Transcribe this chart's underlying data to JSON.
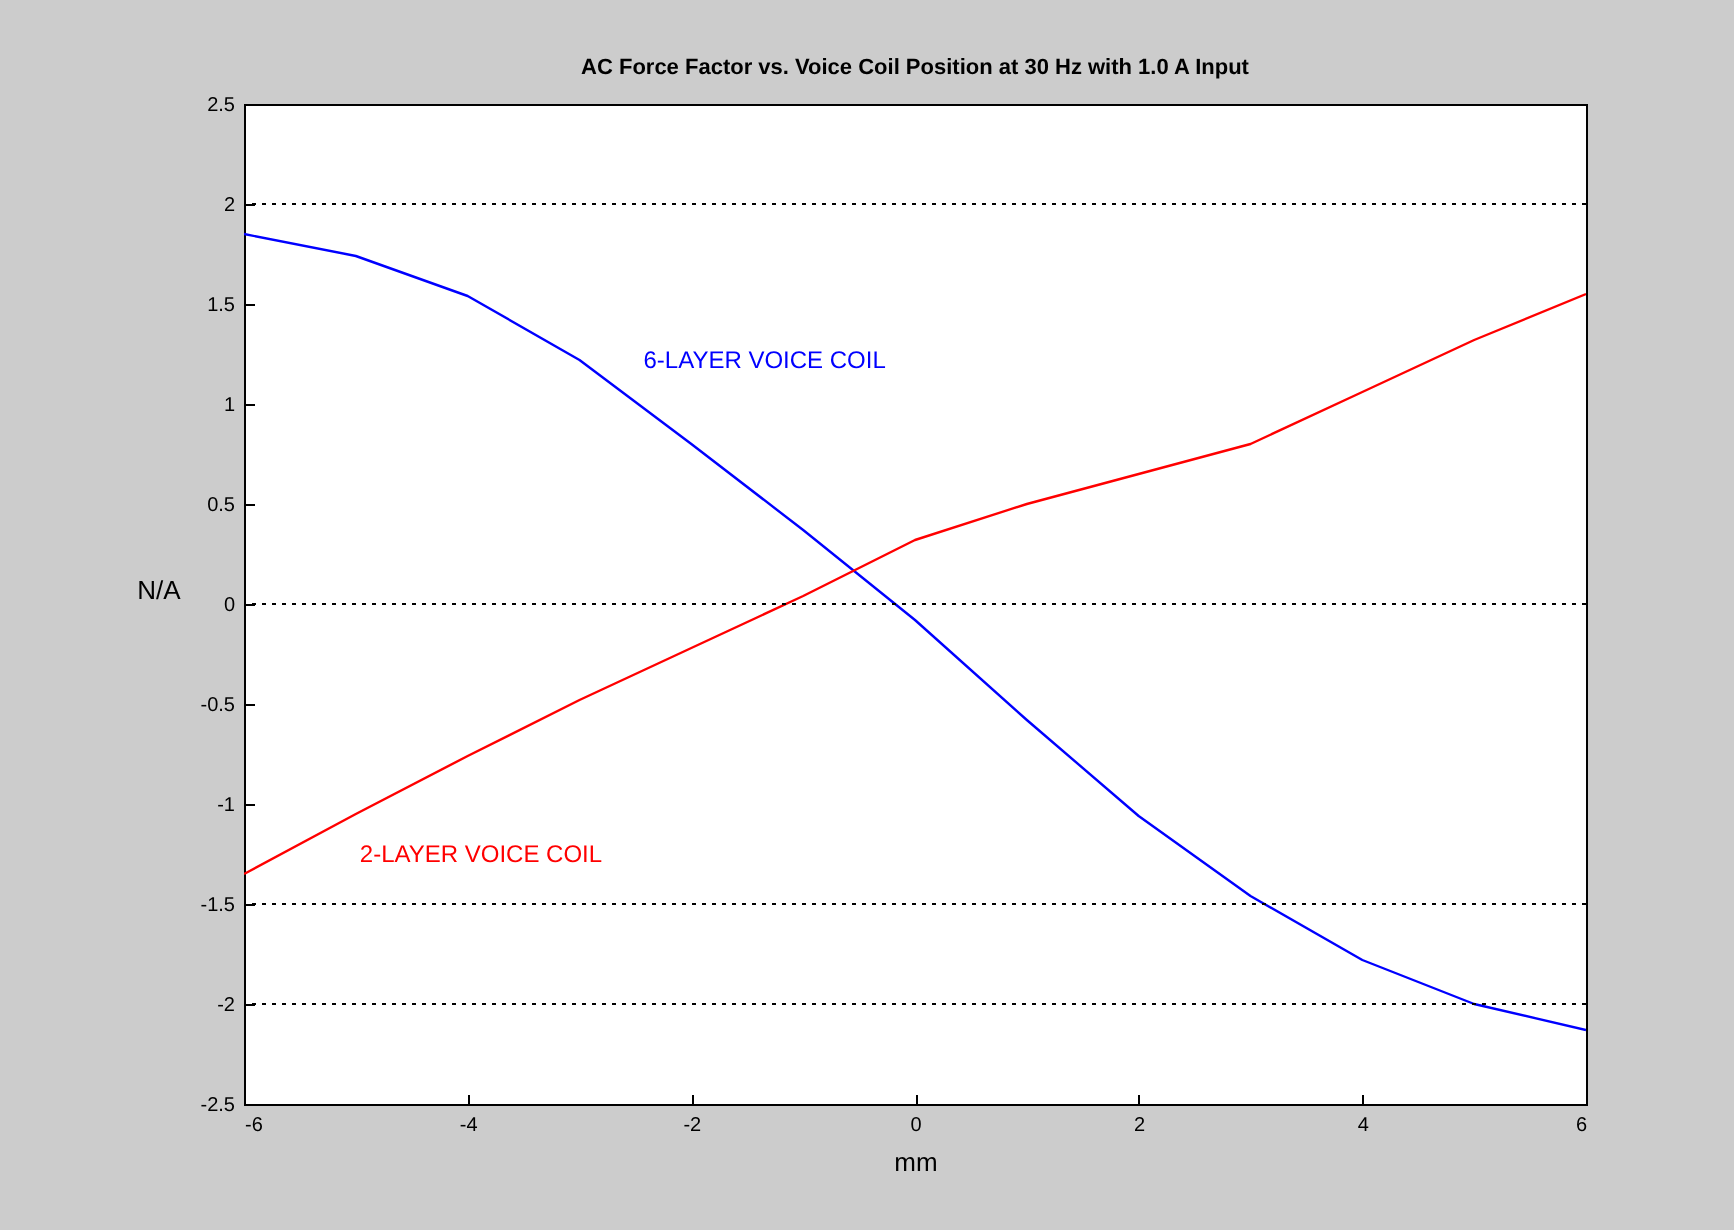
{
  "chart_data": {
    "type": "line",
    "title": "AC Force Factor vs. Voice Coil Position at 30 Hz with 1.0 A Input",
    "xlabel": "mm",
    "ylabel": "N/A",
    "x": [
      -6,
      -5,
      -4,
      -3,
      -2,
      -1,
      0,
      1,
      2,
      3,
      4,
      5,
      6
    ],
    "series": [
      {
        "name": "6-LAYER VOICE COIL",
        "color": "#0000ff",
        "values": [
          1.85,
          1.74,
          1.54,
          1.22,
          0.8,
          0.37,
          -0.08,
          -0.58,
          -1.06,
          -1.46,
          -1.78,
          -2.0,
          -2.13
        ]
      },
      {
        "name": "2-LAYER VOICE COIL",
        "color": "#ff0000",
        "values": [
          -1.35,
          -1.05,
          -0.76,
          -0.48,
          -0.22,
          0.04,
          0.32,
          0.5,
          0.65,
          0.8,
          1.06,
          1.32,
          1.55
        ]
      }
    ],
    "xlim": [
      -6,
      6
    ],
    "xticks": [
      -6,
      -4,
      -2,
      0,
      2,
      4,
      6
    ],
    "ylim": [
      -2.5,
      2.5
    ],
    "yticks": [
      -2.5,
      -2,
      -1.5,
      -1,
      -0.5,
      0,
      0.5,
      1,
      1.5,
      2,
      2.5
    ],
    "ref_lines": [
      {
        "axis": "y",
        "value": 2,
        "color": "#000000",
        "line_style": "dotted"
      },
      {
        "axis": "y",
        "value": 0,
        "color": "#000000",
        "line_style": "dotted"
      },
      {
        "axis": "y",
        "value": -1.5,
        "color": "#000000",
        "line_style": "dotted"
      },
      {
        "axis": "y",
        "value": -2,
        "color": "#000000",
        "line_style": "dotted"
      }
    ],
    "line_style": "solid",
    "marker": "none"
  }
}
